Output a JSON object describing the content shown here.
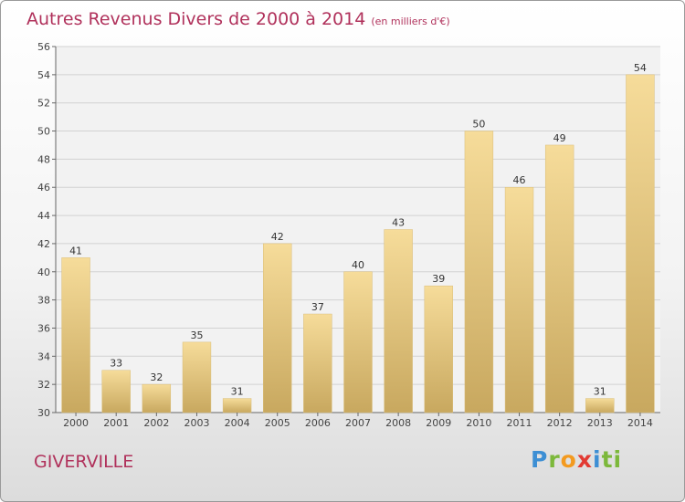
{
  "header": {
    "title": "Autres Revenus Divers de 2000 à 2014",
    "subtitle": "(en milliers d'€)"
  },
  "footer": {
    "place": "GIVERVILLE",
    "logo_letters": [
      "P",
      "r",
      "o",
      "x",
      "i",
      "ti"
    ]
  },
  "colors": {
    "title": "#b0315b",
    "bar_light": "#f6dc9a",
    "bar_dark": "#c8a85f"
  },
  "chart_data": {
    "type": "bar",
    "title": "Autres Revenus Divers de 2000 à 2014",
    "subtitle": "(en milliers d'€)",
    "xlabel": "",
    "ylabel": "",
    "categories": [
      "2000",
      "2001",
      "2002",
      "2003",
      "2004",
      "2005",
      "2006",
      "2007",
      "2008",
      "2009",
      "2010",
      "2011",
      "2012",
      "2013",
      "2014"
    ],
    "values": [
      41,
      33,
      32,
      35,
      31,
      42,
      37,
      40,
      43,
      39,
      50,
      46,
      49,
      31,
      54
    ],
    "ylim": [
      30,
      56
    ],
    "yticks": [
      30,
      32,
      34,
      36,
      38,
      40,
      42,
      44,
      46,
      48,
      50,
      52,
      54,
      56
    ],
    "grid": true
  }
}
